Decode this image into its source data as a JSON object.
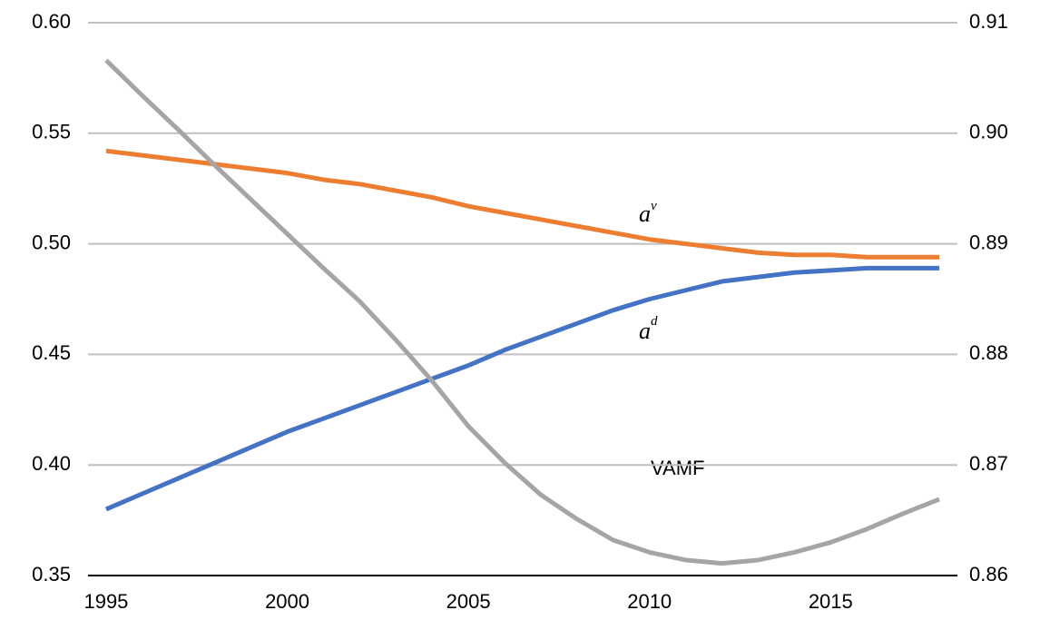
{
  "chart_data": {
    "type": "line",
    "x": [
      1995,
      1996,
      1997,
      1998,
      1999,
      2000,
      2001,
      2002,
      2003,
      2004,
      2005,
      2006,
      2007,
      2008,
      2009,
      2010,
      2011,
      2012,
      2013,
      2014,
      2015,
      2016,
      2017,
      2018
    ],
    "xlim": [
      1994.5,
      2018.5
    ],
    "xticks": [
      1995,
      2000,
      2005,
      2010,
      2015
    ],
    "ylim": [
      0.35,
      0.6
    ],
    "yticks": [
      0.35,
      {
        "value": 0.4,
        "label": "0.40"
      },
      0.45,
      {
        "value": 0.5,
        "label": "0.50"
      },
      0.55,
      {
        "value": 0.6,
        "label": "0.60"
      }
    ],
    "y2lim": [
      0.86,
      0.91
    ],
    "y2ticks": [
      0.86,
      0.87,
      0.88,
      0.89,
      {
        "value": 0.9,
        "label": "0.90"
      },
      0.91
    ],
    "grid": true,
    "series": [
      {
        "color": "#ed7d31",
        "values": [
          0.542,
          0.54,
          0.538,
          0.536,
          0.534,
          0.532,
          0.529,
          0.527,
          0.524,
          0.521,
          0.517,
          0.514,
          0.511,
          0.508,
          0.505,
          0.502,
          0.5,
          0.498,
          0.496,
          0.495,
          0.495,
          0.494,
          0.494,
          0.494
        ]
      },
      {
        "color": "#4472c4",
        "values": [
          0.38,
          0.387,
          0.394,
          0.401,
          0.408,
          0.415,
          0.421,
          0.427,
          0.433,
          0.439,
          0.445,
          0.452,
          0.458,
          0.464,
          0.47,
          0.475,
          0.479,
          0.483,
          0.485,
          0.487,
          0.488,
          0.489,
          0.489,
          0.489
        ]
      },
      {
        "color": "#a5a5a5",
        "axis": "y2",
        "values": [
          0.9066,
          0.9034,
          0.9003,
          0.8971,
          0.894,
          0.8909,
          0.8878,
          0.8848,
          0.8813,
          0.8776,
          0.8735,
          0.8702,
          0.8673,
          0.8651,
          0.8632,
          0.8621,
          0.8614,
          0.8611,
          0.8614,
          0.8621,
          0.863,
          0.8642,
          0.8656,
          0.8669
        ]
      }
    ],
    "annotations": [
      {
        "text": "a",
        "superscript": "v"
      },
      {
        "text": "a",
        "superscript": "d"
      },
      {
        "text": "VAMF"
      }
    ]
  }
}
